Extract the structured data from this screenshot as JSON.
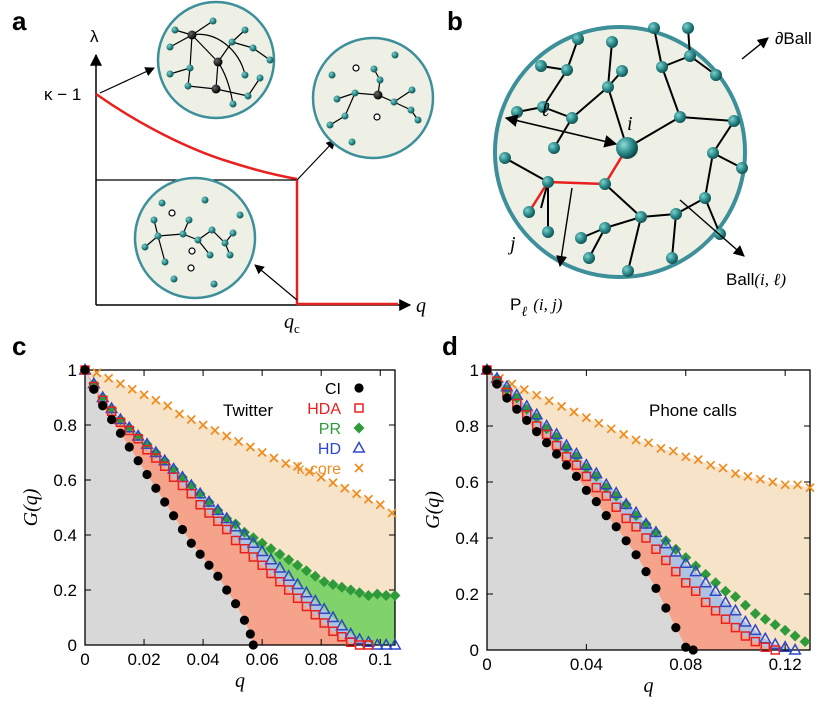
{
  "panel_a": {
    "label": "a",
    "ylabel": "λ",
    "y_tick": "κ − 1",
    "xlabel": "q",
    "x_tick_main": "q",
    "x_tick_sub": "c"
  },
  "panel_b": {
    "label": "b",
    "boundary_label": "∂Ball",
    "center_label": "i",
    "radius_label": "ℓ",
    "node_j_label": "j",
    "ball_label": "Ball",
    "ball_args": "(i, ℓ)",
    "path_label": "P",
    "path_sub": "ℓ",
    "path_args": "(i, j)"
  },
  "colors": {
    "teal": "#2a8a8a",
    "ball_fill": "#eef0e6",
    "ball_border": "#3d8f9a",
    "red": "#e8201e",
    "ci": "#000000",
    "hda": "#e8201e",
    "pr": "#2e9a3a",
    "hd": "#2d48c8",
    "kcore": "#ef8c1f",
    "fill_gray": "#d8d8d8",
    "fill_salmon": "#f5a38b",
    "fill_green": "#7fd36a",
    "fill_blue": "#aec3e2",
    "fill_beige": "#f7e3c8"
  },
  "chart_data": [
    {
      "panel": "c",
      "type": "scatter",
      "title": "Twitter",
      "xlabel": "q",
      "ylabel": "G(q)",
      "xlim": [
        0,
        0.105
      ],
      "ylim": [
        0,
        1
      ],
      "x_ticks": [
        "0",
        "0.02",
        "0.04",
        "0.06",
        "0.08",
        "0.1"
      ],
      "x_tick_values": [
        0,
        0.02,
        0.04,
        0.06,
        0.08,
        0.1
      ],
      "y_ticks": [
        "0",
        "0.2",
        "0.4",
        "0.6",
        "0.8",
        "1"
      ],
      "y_tick_values": [
        0,
        0.2,
        0.4,
        0.6,
        0.8,
        1.0
      ],
      "legend_position": "top-right",
      "series": [
        {
          "name": "CI",
          "marker": "filled-circle",
          "x": [
            0,
            0.003,
            0.006,
            0.009,
            0.012,
            0.015,
            0.018,
            0.021,
            0.024,
            0.027,
            0.03,
            0.033,
            0.036,
            0.039,
            0.042,
            0.045,
            0.048,
            0.051,
            0.054,
            0.056,
            0.057
          ],
          "y": [
            1.0,
            0.93,
            0.87,
            0.82,
            0.77,
            0.72,
            0.67,
            0.62,
            0.57,
            0.52,
            0.47,
            0.42,
            0.37,
            0.33,
            0.29,
            0.25,
            0.2,
            0.15,
            0.09,
            0.04,
            0.0
          ]
        },
        {
          "name": "HDA",
          "marker": "open-square",
          "x": [
            0,
            0.003,
            0.006,
            0.009,
            0.012,
            0.015,
            0.018,
            0.021,
            0.024,
            0.027,
            0.03,
            0.033,
            0.036,
            0.039,
            0.042,
            0.045,
            0.048,
            0.051,
            0.054,
            0.057,
            0.06,
            0.063,
            0.066,
            0.069,
            0.072,
            0.075,
            0.078,
            0.081,
            0.084,
            0.087,
            0.09,
            0.093,
            0.096
          ],
          "y": [
            1.0,
            0.94,
            0.89,
            0.85,
            0.81,
            0.78,
            0.75,
            0.71,
            0.68,
            0.65,
            0.61,
            0.58,
            0.55,
            0.51,
            0.48,
            0.45,
            0.42,
            0.38,
            0.35,
            0.32,
            0.29,
            0.26,
            0.23,
            0.2,
            0.17,
            0.14,
            0.11,
            0.08,
            0.05,
            0.03,
            0.01,
            0.0,
            0.0
          ]
        },
        {
          "name": "PR",
          "marker": "filled-diamond",
          "x": [
            0,
            0.003,
            0.006,
            0.009,
            0.012,
            0.015,
            0.018,
            0.021,
            0.024,
            0.027,
            0.03,
            0.033,
            0.036,
            0.039,
            0.042,
            0.045,
            0.048,
            0.051,
            0.054,
            0.057,
            0.06,
            0.063,
            0.066,
            0.069,
            0.072,
            0.075,
            0.078,
            0.081,
            0.084,
            0.087,
            0.09,
            0.093,
            0.096,
            0.099,
            0.102,
            0.105
          ],
          "y": [
            1.0,
            0.95,
            0.9,
            0.86,
            0.82,
            0.79,
            0.76,
            0.73,
            0.7,
            0.67,
            0.64,
            0.61,
            0.58,
            0.55,
            0.52,
            0.49,
            0.46,
            0.44,
            0.41,
            0.39,
            0.37,
            0.35,
            0.33,
            0.31,
            0.29,
            0.27,
            0.25,
            0.23,
            0.22,
            0.21,
            0.2,
            0.19,
            0.18,
            0.185,
            0.18,
            0.18
          ]
        },
        {
          "name": "HD",
          "marker": "open-triangle",
          "x": [
            0,
            0.003,
            0.006,
            0.009,
            0.012,
            0.015,
            0.018,
            0.021,
            0.024,
            0.027,
            0.03,
            0.033,
            0.036,
            0.039,
            0.042,
            0.045,
            0.048,
            0.051,
            0.054,
            0.057,
            0.06,
            0.063,
            0.066,
            0.069,
            0.072,
            0.075,
            0.078,
            0.081,
            0.084,
            0.087,
            0.09,
            0.093,
            0.096,
            0.099,
            0.102,
            0.105
          ],
          "y": [
            1.0,
            0.95,
            0.9,
            0.86,
            0.82,
            0.79,
            0.76,
            0.73,
            0.7,
            0.67,
            0.64,
            0.61,
            0.58,
            0.55,
            0.52,
            0.49,
            0.46,
            0.43,
            0.4,
            0.37,
            0.34,
            0.31,
            0.28,
            0.25,
            0.22,
            0.19,
            0.16,
            0.13,
            0.1,
            0.07,
            0.04,
            0.02,
            0.01,
            0.0,
            0.0,
            0.0
          ]
        },
        {
          "name": "k-core",
          "marker": "cross",
          "x": [
            0,
            0.004,
            0.008,
            0.012,
            0.016,
            0.02,
            0.024,
            0.028,
            0.032,
            0.036,
            0.04,
            0.044,
            0.048,
            0.052,
            0.056,
            0.06,
            0.064,
            0.068,
            0.072,
            0.076,
            0.08,
            0.084,
            0.088,
            0.092,
            0.096,
            0.1,
            0.104
          ],
          "y": [
            1.0,
            0.99,
            0.97,
            0.95,
            0.93,
            0.91,
            0.89,
            0.87,
            0.84,
            0.82,
            0.8,
            0.78,
            0.76,
            0.74,
            0.72,
            0.7,
            0.68,
            0.66,
            0.65,
            0.63,
            0.61,
            0.59,
            0.57,
            0.55,
            0.53,
            0.51,
            0.48
          ]
        }
      ]
    },
    {
      "panel": "d",
      "type": "scatter",
      "title": "Phone calls",
      "xlabel": "q",
      "ylabel": "G(q)",
      "xlim": [
        0,
        0.13
      ],
      "ylim": [
        0,
        1
      ],
      "x_ticks": [
        "0",
        "0.04",
        "0.08",
        "0.12"
      ],
      "x_tick_values": [
        0,
        0.04,
        0.08,
        0.12
      ],
      "y_ticks": [
        "0",
        "0.2",
        "0.4",
        "0.6",
        "0.8",
        "1"
      ],
      "y_tick_values": [
        0,
        0.2,
        0.4,
        0.6,
        0.8,
        1.0
      ],
      "series": [
        {
          "name": "CI",
          "marker": "filled-circle",
          "x": [
            0,
            0.004,
            0.008,
            0.012,
            0.016,
            0.02,
            0.024,
            0.028,
            0.032,
            0.036,
            0.04,
            0.044,
            0.048,
            0.052,
            0.056,
            0.06,
            0.064,
            0.068,
            0.072,
            0.076,
            0.08,
            0.083
          ],
          "y": [
            1.0,
            0.95,
            0.9,
            0.86,
            0.82,
            0.78,
            0.74,
            0.7,
            0.66,
            0.62,
            0.57,
            0.53,
            0.48,
            0.44,
            0.39,
            0.34,
            0.28,
            0.22,
            0.15,
            0.08,
            0.01,
            0.0
          ]
        },
        {
          "name": "HDA",
          "marker": "open-square",
          "x": [
            0,
            0.004,
            0.008,
            0.012,
            0.016,
            0.02,
            0.024,
            0.028,
            0.032,
            0.036,
            0.04,
            0.044,
            0.048,
            0.052,
            0.056,
            0.06,
            0.064,
            0.068,
            0.072,
            0.076,
            0.08,
            0.084,
            0.088,
            0.092,
            0.096,
            0.1,
            0.104,
            0.108,
            0.112,
            0.116
          ],
          "y": [
            1.0,
            0.96,
            0.92,
            0.88,
            0.84,
            0.8,
            0.77,
            0.73,
            0.69,
            0.66,
            0.62,
            0.58,
            0.55,
            0.51,
            0.47,
            0.44,
            0.4,
            0.36,
            0.32,
            0.28,
            0.24,
            0.21,
            0.17,
            0.14,
            0.11,
            0.08,
            0.05,
            0.03,
            0.01,
            0.0
          ]
        },
        {
          "name": "PR",
          "marker": "filled-diamond",
          "x": [
            0,
            0.004,
            0.008,
            0.012,
            0.016,
            0.02,
            0.024,
            0.028,
            0.032,
            0.036,
            0.04,
            0.044,
            0.048,
            0.052,
            0.056,
            0.06,
            0.064,
            0.068,
            0.072,
            0.076,
            0.08,
            0.084,
            0.088,
            0.092,
            0.096,
            0.1,
            0.104,
            0.108,
            0.112,
            0.116,
            0.12,
            0.124,
            0.128
          ],
          "y": [
            1.0,
            0.97,
            0.93,
            0.9,
            0.86,
            0.83,
            0.79,
            0.76,
            0.72,
            0.69,
            0.65,
            0.62,
            0.58,
            0.55,
            0.52,
            0.48,
            0.45,
            0.42,
            0.39,
            0.36,
            0.33,
            0.3,
            0.27,
            0.24,
            0.21,
            0.19,
            0.16,
            0.13,
            0.11,
            0.09,
            0.07,
            0.05,
            0.03
          ]
        },
        {
          "name": "HD",
          "marker": "open-triangle",
          "x": [
            0,
            0.004,
            0.008,
            0.012,
            0.016,
            0.02,
            0.024,
            0.028,
            0.032,
            0.036,
            0.04,
            0.044,
            0.048,
            0.052,
            0.056,
            0.06,
            0.064,
            0.068,
            0.072,
            0.076,
            0.08,
            0.084,
            0.088,
            0.092,
            0.096,
            0.1,
            0.104,
            0.108,
            0.112,
            0.116,
            0.12,
            0.124
          ],
          "y": [
            1.0,
            0.97,
            0.94,
            0.91,
            0.87,
            0.84,
            0.8,
            0.77,
            0.73,
            0.7,
            0.66,
            0.63,
            0.59,
            0.56,
            0.52,
            0.49,
            0.45,
            0.42,
            0.38,
            0.35,
            0.31,
            0.28,
            0.24,
            0.21,
            0.17,
            0.14,
            0.1,
            0.07,
            0.04,
            0.02,
            0.01,
            0.0
          ]
        },
        {
          "name": "k-core",
          "marker": "cross",
          "x": [
            0,
            0.005,
            0.01,
            0.015,
            0.02,
            0.025,
            0.03,
            0.035,
            0.04,
            0.045,
            0.05,
            0.055,
            0.06,
            0.065,
            0.07,
            0.075,
            0.08,
            0.085,
            0.09,
            0.095,
            0.1,
            0.105,
            0.11,
            0.115,
            0.12,
            0.125,
            0.13
          ],
          "y": [
            1.0,
            0.97,
            0.95,
            0.93,
            0.91,
            0.89,
            0.87,
            0.85,
            0.83,
            0.81,
            0.79,
            0.77,
            0.75,
            0.74,
            0.72,
            0.71,
            0.69,
            0.68,
            0.66,
            0.65,
            0.63,
            0.62,
            0.61,
            0.6,
            0.59,
            0.59,
            0.58
          ]
        }
      ]
    }
  ]
}
